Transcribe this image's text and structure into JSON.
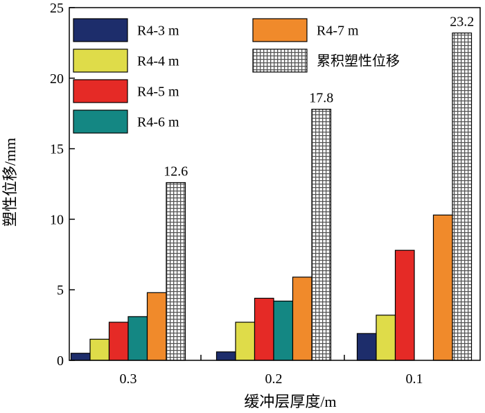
{
  "chart_data": {
    "type": "bar",
    "categories": [
      "0.3",
      "0.2",
      "0.1"
    ],
    "xlabel": "缓冲层厚度/m",
    "ylabel": "塑性位移/mm",
    "ylim": [
      0,
      25
    ],
    "yticks": [
      0,
      5,
      10,
      15,
      20,
      25
    ],
    "grid": false,
    "legend_position": "top-left",
    "series": [
      {
        "name": "R4-3 m",
        "values": [
          0.5,
          0.6,
          1.9
        ],
        "color": "#1d2d6b"
      },
      {
        "name": "R4-4 m",
        "values": [
          1.5,
          2.7,
          3.2
        ],
        "color": "#dfdc49"
      },
      {
        "name": "R4-5 m",
        "values": [
          2.7,
          4.4,
          7.8
        ],
        "color": "#e52a26"
      },
      {
        "name": "R4-6 m",
        "values": [
          3.1,
          4.2,
          null
        ],
        "color": "#148783"
      },
      {
        "name": "R4-7 m",
        "values": [
          4.8,
          5.9,
          10.3
        ],
        "color": "#f08a2b"
      },
      {
        "name": "累积塑性位移",
        "values": [
          12.6,
          17.8,
          23.2
        ],
        "color": "#8c8c8c",
        "pattern": "grid",
        "data_labels": [
          "12.6",
          "17.8",
          "23.2"
        ]
      }
    ]
  }
}
